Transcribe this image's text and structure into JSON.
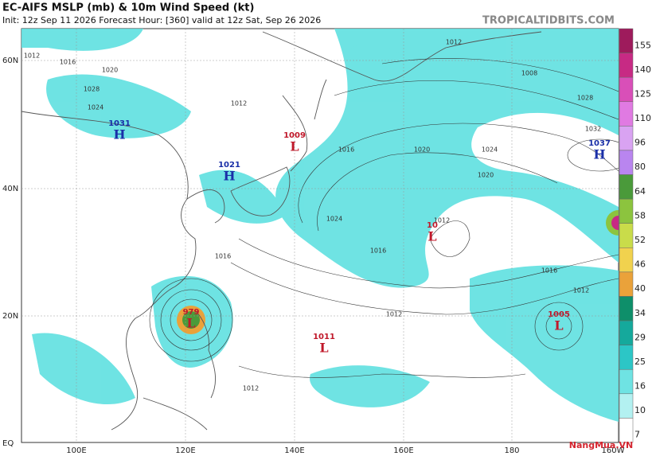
{
  "header": {
    "title": "EC-AIFS MSLP (mb) & 10m Wind Speed (kt)",
    "info": "Init: 12z Sep 11 2026   Forecast Hour: [360]   valid at 12z Sat, Sep 26 2026",
    "brand": "TROPICALTIDBITS.COM"
  },
  "axes": {
    "lat": [
      "60N",
      "40N",
      "20N",
      "EQ"
    ],
    "lon": [
      "100E",
      "120E",
      "140E",
      "160E",
      "180",
      "160W"
    ]
  },
  "centers": [
    {
      "kind": "H",
      "pressure": "1031"
    },
    {
      "kind": "H",
      "pressure": "1021"
    },
    {
      "kind": "L",
      "pressure": "1009"
    },
    {
      "kind": "L",
      "pressure": "10"
    },
    {
      "kind": "H",
      "pressure": "1037"
    },
    {
      "kind": "L",
      "pressure": "979"
    },
    {
      "kind": "L",
      "pressure": "1011"
    },
    {
      "kind": "L",
      "pressure": "1005"
    }
  ],
  "isobar_labels": [
    "1012",
    "1016",
    "1020",
    "1024",
    "1028",
    "1012",
    "1016",
    "1020",
    "1024",
    "1008",
    "1012",
    "1016",
    "1020",
    "1024",
    "1028",
    "1032",
    "1016",
    "1012",
    "1012",
    "1012",
    "1016",
    "1012"
  ],
  "colorbar": [
    {
      "label": "155",
      "color": "#9e1b5c"
    },
    {
      "label": "140",
      "color": "#c72a84"
    },
    {
      "label": "125",
      "color": "#d94fb8"
    },
    {
      "label": "110",
      "color": "#e07ae2"
    },
    {
      "label": "96",
      "color": "#d9a3f2"
    },
    {
      "label": "80",
      "color": "#b985ef"
    },
    {
      "label": "64",
      "color": "#4a9a3a"
    },
    {
      "label": "58",
      "color": "#8cc43e"
    },
    {
      "label": "52",
      "color": "#c9dc4a"
    },
    {
      "label": "46",
      "color": "#f1d24e"
    },
    {
      "label": "40",
      "color": "#eaa23a"
    },
    {
      "label": "34",
      "color": "#0e8f6a"
    },
    {
      "label": "29",
      "color": "#15a99c"
    },
    {
      "label": "25",
      "color": "#2cc6c6"
    },
    {
      "label": "16",
      "color": "#6fe3e3"
    },
    {
      "label": "10",
      "color": "#b3f1f1"
    },
    {
      "label": "7",
      "color": "#ffffff"
    }
  ],
  "watermark": "NangMua.VN"
}
